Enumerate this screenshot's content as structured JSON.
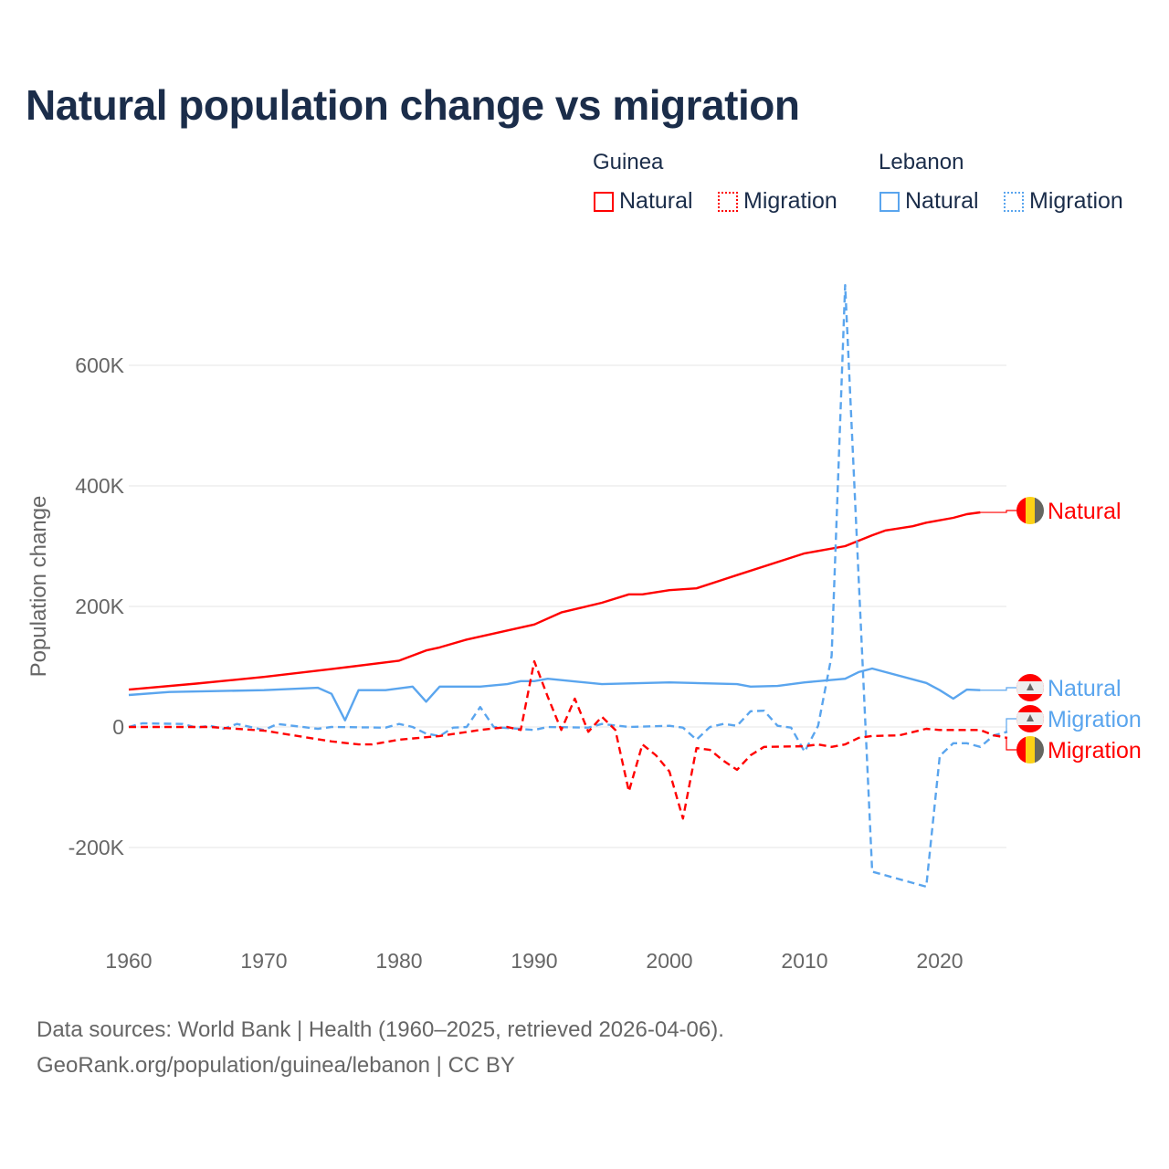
{
  "title": "Natural population change vs migration",
  "legend": {
    "groups": [
      {
        "name": "Guinea",
        "items": [
          "Natural",
          "Migration"
        ]
      },
      {
        "name": "Lebanon",
        "items": [
          "Natural",
          "Migration"
        ]
      }
    ]
  },
  "footer": {
    "line1": "Data sources: World Bank | Health (1960–2025, retrieved 2026-04-06).",
    "line2": "GeoRank.org/population/guinea/lebanon | CC BY"
  },
  "colors": {
    "guinea": "#ff0000",
    "lebanon": "#5aa5ee",
    "grid": "#e6e6e6",
    "axis_text": "#666666"
  },
  "chart_data": {
    "type": "line",
    "title": "Natural population change vs migration",
    "xlabel": "",
    "ylabel": "Population change",
    "xlim": [
      1960,
      2025
    ],
    "ylim": [
      -300000,
      750000
    ],
    "xticks": [
      1960,
      1970,
      1980,
      1990,
      2000,
      2010,
      2020
    ],
    "xtick_labels": [
      "1960",
      "1970",
      "1980",
      "1990",
      "2000",
      "2010",
      "2020"
    ],
    "yticks": [
      -200000,
      0,
      200000,
      400000,
      600000
    ],
    "ytick_labels": [
      "-200K",
      "0",
      "200K",
      "400K",
      "600K"
    ],
    "grid": true,
    "legend_placement": "top-right",
    "series": [
      {
        "name": "Guinea Natural",
        "country": "Guinea",
        "kind": "Natural",
        "label": "Natural",
        "color": "#ff0000",
        "dash": false,
        "points": [
          [
            1960,
            62000
          ],
          [
            1965,
            72000
          ],
          [
            1970,
            83000
          ],
          [
            1975,
            96000
          ],
          [
            1980,
            110000
          ],
          [
            1982,
            127000
          ],
          [
            1983,
            132000
          ],
          [
            1985,
            145000
          ],
          [
            1990,
            170000
          ],
          [
            1992,
            190000
          ],
          [
            1995,
            206000
          ],
          [
            1997,
            220000
          ],
          [
            1998,
            220000
          ],
          [
            2000,
            227000
          ],
          [
            2002,
            230000
          ],
          [
            2005,
            252000
          ],
          [
            2010,
            288000
          ],
          [
            2013,
            300000
          ],
          [
            2015,
            318000
          ],
          [
            2016,
            326000
          ],
          [
            2018,
            333000
          ],
          [
            2019,
            339000
          ],
          [
            2021,
            347000
          ],
          [
            2022,
            353000
          ],
          [
            2023,
            356000
          ]
        ]
      },
      {
        "name": "Lebanon Natural",
        "country": "Lebanon",
        "kind": "Natural",
        "label": "Natural",
        "color": "#5aa5ee",
        "dash": false,
        "points": [
          [
            1960,
            53000
          ],
          [
            1963,
            58000
          ],
          [
            1970,
            61000
          ],
          [
            1974,
            65000
          ],
          [
            1975,
            55000
          ],
          [
            1976,
            11000
          ],
          [
            1977,
            61000
          ],
          [
            1979,
            61000
          ],
          [
            1981,
            67000
          ],
          [
            1982,
            42000
          ],
          [
            1983,
            67000
          ],
          [
            1986,
            67000
          ],
          [
            1988,
            71000
          ],
          [
            1989,
            76000
          ],
          [
            1990,
            76000
          ],
          [
            1991,
            80000
          ],
          [
            1995,
            71000
          ],
          [
            2000,
            74000
          ],
          [
            2005,
            71000
          ],
          [
            2006,
            67000
          ],
          [
            2008,
            68000
          ],
          [
            2010,
            74000
          ],
          [
            2013,
            80000
          ],
          [
            2014,
            91000
          ],
          [
            2015,
            97000
          ],
          [
            2019,
            73000
          ],
          [
            2020,
            61000
          ],
          [
            2021,
            47000
          ],
          [
            2022,
            62000
          ],
          [
            2023,
            61000
          ]
        ]
      },
      {
        "name": "Lebanon Migration",
        "country": "Lebanon",
        "kind": "Migration",
        "label": "Migration",
        "color": "#5aa5ee",
        "dash": true,
        "points": [
          [
            1960,
            0
          ],
          [
            1961,
            6000
          ],
          [
            1964,
            5000
          ],
          [
            1965,
            -1000
          ],
          [
            1966,
            2000
          ],
          [
            1967,
            -3000
          ],
          [
            1968,
            5000
          ],
          [
            1970,
            -5000
          ],
          [
            1971,
            5000
          ],
          [
            1974,
            -3000
          ],
          [
            1975,
            0
          ],
          [
            1979,
            -1000
          ],
          [
            1980,
            5000
          ],
          [
            1981,
            0
          ],
          [
            1982,
            -11000
          ],
          [
            1983,
            -15000
          ],
          [
            1984,
            -1000
          ],
          [
            1985,
            0
          ],
          [
            1986,
            33000
          ],
          [
            1987,
            0
          ],
          [
            1990,
            -5000
          ],
          [
            1991,
            0
          ],
          [
            1994,
            -1000
          ],
          [
            1995,
            5000
          ],
          [
            1997,
            0
          ],
          [
            2000,
            2000
          ],
          [
            2001,
            -1000
          ],
          [
            2002,
            -21000
          ],
          [
            2003,
            0
          ],
          [
            2004,
            5000
          ],
          [
            2005,
            2000
          ],
          [
            2006,
            26000
          ],
          [
            2007,
            27000
          ],
          [
            2008,
            2000
          ],
          [
            2009,
            -1000
          ],
          [
            2010,
            -41000
          ],
          [
            2011,
            2000
          ],
          [
            2012,
            118000
          ],
          [
            2013,
            733000
          ],
          [
            2015,
            -240000
          ],
          [
            2019,
            -265000
          ],
          [
            2020,
            -48000
          ],
          [
            2021,
            -27000
          ],
          [
            2022,
            -27000
          ],
          [
            2023,
            -33000
          ],
          [
            2024,
            -14000
          ],
          [
            2025,
            -8000
          ]
        ]
      },
      {
        "name": "Guinea Migration",
        "country": "Guinea",
        "kind": "Migration",
        "label": "Migration",
        "color": "#ff0000",
        "dash": true,
        "points": [
          [
            1960,
            0
          ],
          [
            1966,
            0
          ],
          [
            1970,
            -6000
          ],
          [
            1975,
            -24000
          ],
          [
            1977,
            -29000
          ],
          [
            1978,
            -29000
          ],
          [
            1980,
            -21000
          ],
          [
            1983,
            -15000
          ],
          [
            1986,
            -5000
          ],
          [
            1988,
            0
          ],
          [
            1989,
            -5000
          ],
          [
            1990,
            109000
          ],
          [
            1991,
            50000
          ],
          [
            1992,
            -5000
          ],
          [
            1993,
            47000
          ],
          [
            1994,
            -8000
          ],
          [
            1995,
            17000
          ],
          [
            1996,
            -5000
          ],
          [
            1997,
            -107000
          ],
          [
            1998,
            -29000
          ],
          [
            1999,
            -47000
          ],
          [
            2000,
            -74000
          ],
          [
            2001,
            -152000
          ],
          [
            2002,
            -35000
          ],
          [
            2003,
            -38000
          ],
          [
            2004,
            -56000
          ],
          [
            2005,
            -71000
          ],
          [
            2006,
            -47000
          ],
          [
            2007,
            -33000
          ],
          [
            2010,
            -32000
          ],
          [
            2011,
            -29000
          ],
          [
            2012,
            -33000
          ],
          [
            2013,
            -29000
          ],
          [
            2014,
            -18000
          ],
          [
            2015,
            -15000
          ],
          [
            2017,
            -14000
          ],
          [
            2019,
            -3000
          ],
          [
            2020,
            -5000
          ],
          [
            2023,
            -5000
          ],
          [
            2024,
            -14000
          ],
          [
            2025,
            -18000
          ]
        ]
      }
    ]
  }
}
